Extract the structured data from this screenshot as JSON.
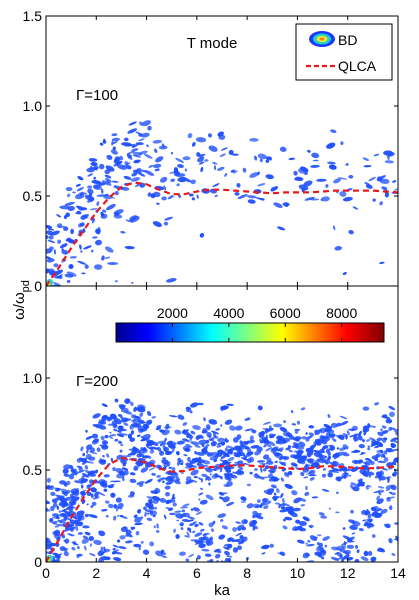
{
  "chart_data": [
    {
      "type": "heatmap",
      "panel": "top",
      "title": "T mode",
      "annotation": "Γ=100",
      "xlim": [
        0,
        14
      ],
      "ylim": [
        0,
        1.5
      ],
      "yticks": [
        0,
        0.5,
        1.0,
        1.5
      ],
      "ytick_labels": [
        "0",
        "0.5",
        "1.0",
        "1.5"
      ],
      "legend": {
        "placement": "top-right",
        "entries": [
          {
            "label": "BD",
            "style": "filled-contour-symbol"
          },
          {
            "label": "QLCA",
            "style": "dashed",
            "color": "#e8191c"
          }
        ]
      },
      "series": [
        {
          "name": "QLCA",
          "x": [
            0,
            0.5,
            1.0,
            1.5,
            2.0,
            2.5,
            3.0,
            3.5,
            4.0,
            4.5,
            5.0,
            5.5,
            6.0,
            6.5,
            7.0,
            7.5,
            8.0,
            8.5,
            9.0,
            9.5,
            10.0,
            10.5,
            11.0,
            11.5,
            12.0,
            12.5,
            13.0,
            13.5,
            14.0
          ],
          "y": [
            0,
            0.1,
            0.21,
            0.31,
            0.41,
            0.49,
            0.55,
            0.575,
            0.565,
            0.535,
            0.51,
            0.51,
            0.525,
            0.535,
            0.535,
            0.53,
            0.525,
            0.52,
            0.515,
            0.52,
            0.52,
            0.52,
            0.525,
            0.53,
            0.53,
            0.53,
            0.53,
            0.525,
            0.52
          ]
        }
      ],
      "bd_density_color": "#1f4fff"
    },
    {
      "type": "heatmap",
      "panel": "bottom",
      "annotation": "Γ=200",
      "xlabel": "ka",
      "xlim": [
        0,
        14
      ],
      "ylim": [
        0,
        1.5
      ],
      "xticks": [
        0,
        2,
        4,
        6,
        8,
        10,
        12,
        14
      ],
      "xtick_labels": [
        "0",
        "2",
        "4",
        "6",
        "8",
        "10",
        "12",
        "14"
      ],
      "yticks": [
        0,
        0.5,
        1.0
      ],
      "ytick_labels": [
        "0",
        "0.5",
        "1.0"
      ],
      "colorbar": {
        "range": [
          0,
          9500
        ],
        "ticks": [
          2000,
          4000,
          6000,
          8000
        ],
        "tick_labels": [
          "2000",
          "4000",
          "6000",
          "8000"
        ],
        "colormap": "jet"
      },
      "series": [
        {
          "name": "QLCA",
          "x": [
            0,
            0.5,
            1.0,
            1.5,
            2.0,
            2.5,
            3.0,
            3.5,
            4.0,
            4.5,
            5.0,
            5.5,
            6.0,
            6.5,
            7.0,
            7.5,
            8.0,
            8.5,
            9.0,
            9.5,
            10.0,
            10.5,
            11.0,
            11.5,
            12.0,
            12.5,
            13.0,
            13.5,
            14.0
          ],
          "y": [
            0,
            0.12,
            0.24,
            0.35,
            0.45,
            0.53,
            0.565,
            0.555,
            0.54,
            0.51,
            0.49,
            0.495,
            0.51,
            0.515,
            0.52,
            0.525,
            0.525,
            0.52,
            0.515,
            0.51,
            0.505,
            0.51,
            0.52,
            0.52,
            0.515,
            0.51,
            0.51,
            0.515,
            0.52
          ]
        }
      ],
      "bd_density_color": "#1f4fff"
    }
  ],
  "shared_ylabel": "ω/ω",
  "shared_ylabel_sub": "pd"
}
